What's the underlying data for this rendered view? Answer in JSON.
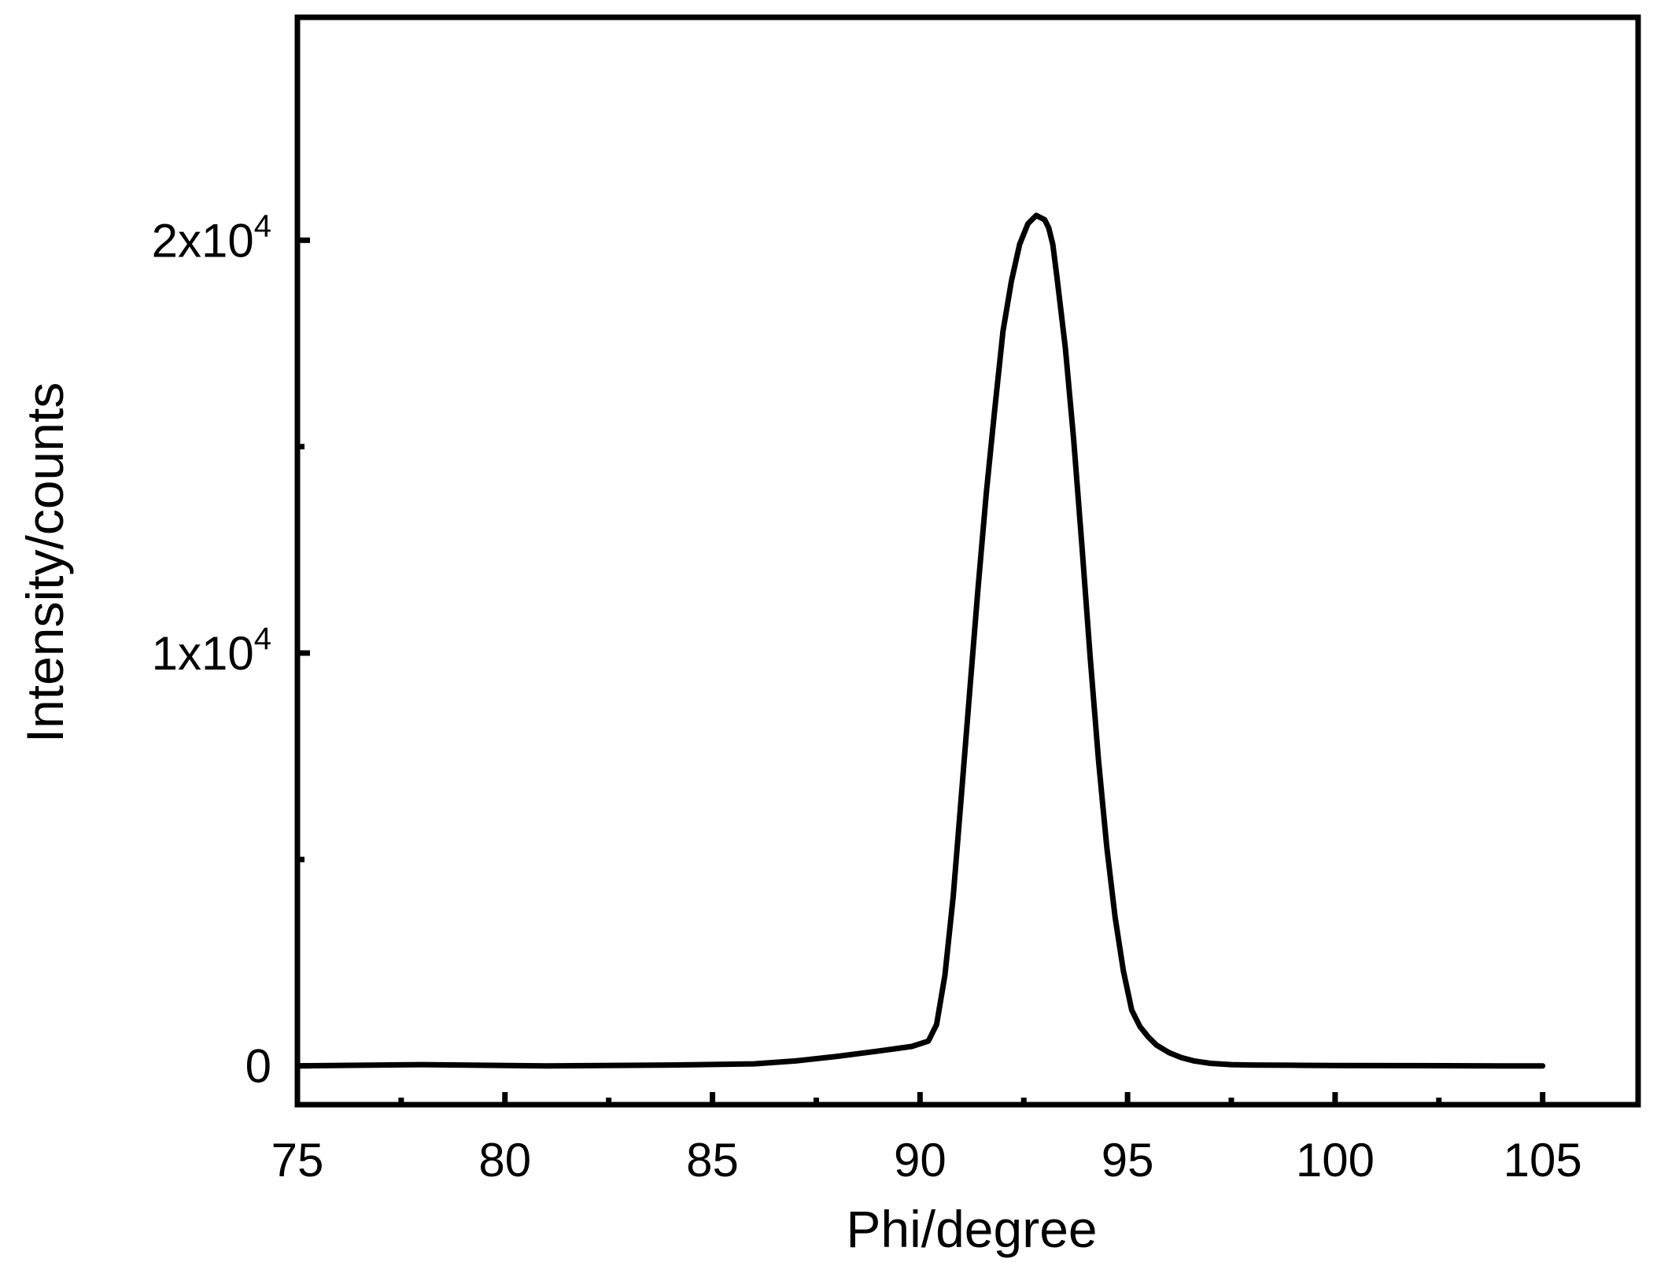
{
  "chart_data": {
    "type": "line",
    "title": "",
    "xlabel": "Phi/degree",
    "ylabel": "Intensity/counts",
    "xlim": [
      75,
      107.3
    ],
    "ylim": [
      -940,
      25400
    ],
    "x_ticks": [
      {
        "value": 75,
        "label": "75"
      },
      {
        "value": 80,
        "label": "80"
      },
      {
        "value": 85,
        "label": "85"
      },
      {
        "value": 90,
        "label": "90"
      },
      {
        "value": 95,
        "label": "95"
      },
      {
        "value": 100,
        "label": "100"
      },
      {
        "value": 105,
        "label": "105"
      }
    ],
    "x_minor_ticks": [
      77.5,
      82.5,
      87.5,
      92.5,
      97.5,
      102.5
    ],
    "y_ticks": [
      {
        "value": 0,
        "base": "0",
        "exp": ""
      },
      {
        "value": 10000,
        "base": "1x10",
        "exp": "4"
      },
      {
        "value": 20000,
        "base": "2x10",
        "exp": "4"
      }
    ],
    "y_minor_ticks": [
      5000,
      15000
    ],
    "grid": false,
    "series": [
      {
        "color": "#000000",
        "x": [
          75.0,
          78.0,
          81.0,
          84.0,
          86.0,
          87.0,
          88.0,
          89.0,
          89.8,
          90.2,
          90.4,
          90.6,
          90.8,
          91.0,
          91.2,
          91.4,
          91.6,
          91.8,
          92.0,
          92.2,
          92.4,
          92.6,
          92.8,
          92.9,
          93.0,
          93.1,
          93.2,
          93.3,
          93.5,
          93.7,
          93.9,
          94.1,
          94.3,
          94.5,
          94.7,
          94.9,
          95.1,
          95.3,
          95.5,
          95.7,
          96.0,
          96.3,
          96.6,
          97.0,
          97.5,
          98.0,
          99.0,
          100.0,
          102.0,
          104.0,
          105.0
        ],
        "y": [
          0,
          30,
          0,
          20,
          50,
          120,
          230,
          360,
          470,
          600,
          1000,
          2200,
          4100,
          6600,
          9100,
          11600,
          13900,
          15900,
          17800,
          19000,
          19900,
          20400,
          20600,
          20550,
          20500,
          20300,
          19900,
          19100,
          17400,
          15200,
          12600,
          9900,
          7400,
          5300,
          3600,
          2300,
          1350,
          950,
          700,
          500,
          320,
          200,
          120,
          60,
          30,
          20,
          15,
          10,
          5,
          0,
          0
        ]
      }
    ]
  }
}
